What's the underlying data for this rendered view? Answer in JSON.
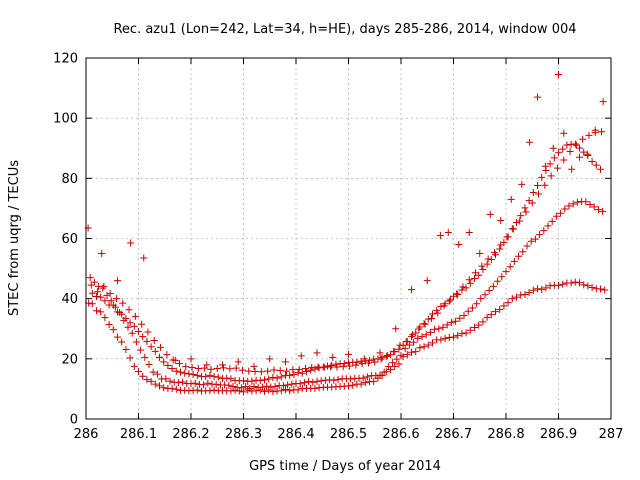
{
  "chart_data": {
    "type": "scatter",
    "title": "Rec. azu1 (Lon=242, Lat=34, h=HE), days 285-286, 2014, window 004",
    "xlabel": "GPS time / Days of year 2014",
    "ylabel": "STEC from uqrg / TECUs",
    "xlim": [
      286,
      287
    ],
    "ylim": [
      0,
      120
    ],
    "xticks": [
      286,
      286.1,
      286.2,
      286.3,
      286.4,
      286.5,
      286.6,
      286.7,
      286.8,
      286.9,
      287
    ],
    "xtick_labels": [
      "286",
      "286.1",
      "286.2",
      "286.3",
      "286.4",
      "286.5",
      "286.6",
      "286.7",
      "286.8",
      "286.9",
      "287"
    ],
    "yticks": [
      0,
      20,
      40,
      60,
      80,
      100,
      120
    ],
    "ytick_labels": [
      "0",
      "20",
      "40",
      "60",
      "80",
      "100",
      "120"
    ],
    "grid": true,
    "legend": "none",
    "marker": "plus",
    "color": "#cc0000",
    "series": [
      {
        "x": [
          286.005,
          286.012,
          286.02,
          286.028,
          286.036,
          286.044,
          286.052,
          286.06,
          286.068,
          286.076,
          286.084,
          286.092,
          286.1,
          286.108,
          286.116,
          286.124,
          286.132,
          286.14,
          286.148,
          286.156,
          286.164,
          286.172,
          286.18,
          286.188,
          286.196,
          286.204,
          286.212,
          286.22,
          286.228,
          286.236,
          286.244,
          286.252,
          286.26,
          286.268,
          286.276,
          286.284,
          286.292,
          286.3,
          286.308,
          286.316,
          286.324,
          286.332,
          286.34,
          286.348,
          286.356,
          286.364,
          286.372,
          286.38,
          286.388,
          286.396,
          286.404,
          286.412,
          286.42,
          286.428,
          286.436,
          286.444,
          286.452,
          286.46,
          286.468,
          286.476,
          286.484,
          286.492,
          286.5,
          286.508,
          286.516,
          286.524,
          286.532,
          286.54,
          286.548,
          286.556,
          286.564,
          286.572,
          286.58,
          286.588,
          286.596,
          286.604,
          286.612,
          286.62,
          286.628,
          286.636,
          286.644,
          286.652,
          286.66,
          286.668,
          286.676,
          286.684,
          286.692,
          286.7,
          286.708,
          286.716,
          286.724,
          286.732,
          286.74,
          286.748,
          286.756,
          286.764,
          286.772,
          286.78,
          286.788,
          286.796,
          286.804,
          286.812,
          286.82,
          286.828,
          286.836,
          286.844,
          286.852,
          286.86,
          286.868,
          286.876,
          286.884,
          286.892,
          286.9,
          286.908,
          286.916,
          286.924,
          286.932,
          286.94,
          286.948,
          286.956,
          286.964,
          286.972,
          286.98,
          286.988
        ],
        "y": [
          38.5,
          38.3,
          36,
          35.6,
          33.7,
          31.4,
          29.7,
          27.2,
          25.6,
          23.1,
          20.3,
          17.5,
          15.8,
          14.2,
          13.1,
          12.5,
          11.6,
          11,
          10.4,
          10.2,
          10.1,
          9.9,
          9.5,
          9.5,
          9.4,
          9.5,
          9.6,
          9.3,
          9.4,
          9.4,
          9.6,
          9.4,
          9.4,
          9.4,
          9.3,
          9.5,
          9.3,
          9,
          9.6,
          9.3,
          9.4,
          9.6,
          9.2,
          9.6,
          9.1,
          9.3,
          9.4,
          9.8,
          9.4,
          9.7,
          9.7,
          10.2,
          10.2,
          10.2,
          10.2,
          10.4,
          10.5,
          10.6,
          10.6,
          10.7,
          10.8,
          10.9,
          11,
          11.2,
          11.6,
          11.6,
          12.1,
          12.4,
          12.5,
          13.6,
          14.4,
          15.7,
          16.4,
          17.5,
          18.3,
          20.7,
          21.4,
          22.2,
          22.4,
          23.7,
          24,
          24.6,
          25.3,
          26.3,
          26.3,
          26.8,
          27.1,
          27.2,
          27.7,
          28.4,
          28.6,
          29.5,
          30.4,
          31.2,
          32.3,
          33.8,
          34.7,
          35.7,
          36.4,
          37.6,
          38.7,
          40,
          40.5,
          41.2,
          41.4,
          42,
          42.8,
          43.3,
          43.1,
          43.6,
          44.3,
          44.4,
          44.4,
          44.8,
          45.2,
          45.2,
          45.5,
          45.3,
          44.6,
          44.3,
          43.7,
          43.3,
          43.2,
          42.9
        ]
      },
      {
        "x": [
          286.008,
          286.016,
          286.024,
          286.032,
          286.04,
          286.048,
          286.056,
          286.064,
          286.072,
          286.08,
          286.088,
          286.096,
          286.104,
          286.112,
          286.12,
          286.128,
          286.136,
          286.144,
          286.152,
          286.16,
          286.168,
          286.176,
          286.184,
          286.192,
          286.2,
          286.208,
          286.216,
          286.224,
          286.232,
          286.24,
          286.248,
          286.256,
          286.264,
          286.272,
          286.28,
          286.288,
          286.296,
          286.304,
          286.312,
          286.32,
          286.328,
          286.336,
          286.344,
          286.352,
          286.36,
          286.368,
          286.376,
          286.384,
          286.392,
          286.4,
          286.408,
          286.416,
          286.424,
          286.432,
          286.44,
          286.448,
          286.456,
          286.464,
          286.472,
          286.48,
          286.488,
          286.496,
          286.504,
          286.512,
          286.52,
          286.528,
          286.536,
          286.544,
          286.552,
          286.56,
          286.568,
          286.576,
          286.584,
          286.592,
          286.6,
          286.608,
          286.616,
          286.624,
          286.632,
          286.64,
          286.648,
          286.656,
          286.664,
          286.672,
          286.68,
          286.688,
          286.696,
          286.704,
          286.712,
          286.72,
          286.728,
          286.736,
          286.744,
          286.752,
          286.76,
          286.768,
          286.776,
          286.784,
          286.792,
          286.8,
          286.808,
          286.816,
          286.824,
          286.832,
          286.84,
          286.848,
          286.856,
          286.864,
          286.872,
          286.88,
          286.888,
          286.896,
          286.904,
          286.912,
          286.92,
          286.928,
          286.936,
          286.944,
          286.952,
          286.96,
          286.968,
          286.976,
          286.984
        ],
        "y": [
          47,
          45.5,
          44.1,
          43.5,
          41.1,
          39.3,
          37.2,
          35.4,
          32.8,
          30.5,
          28.5,
          25.6,
          22.9,
          20.5,
          18.1,
          15.6,
          14.9,
          13.3,
          13.4,
          12.6,
          12.2,
          12.1,
          12.3,
          11.8,
          11.7,
          11.9,
          11.5,
          11.4,
          11.9,
          11.6,
          11.5,
          11.3,
          11.3,
          11.2,
          10.8,
          10.5,
          10.4,
          10.8,
          10.2,
          10.8,
          10.5,
          10.6,
          10.9,
          10.6,
          10.8,
          11.1,
          11.1,
          11.3,
          11.6,
          11.8,
          11.7,
          12.1,
          12.5,
          12.2,
          12.5,
          12.7,
          12.9,
          13,
          12.9,
          13.1,
          13.4,
          13.4,
          13.3,
          13.5,
          13.5,
          13.6,
          14,
          14.4,
          14.4,
          14.6,
          15.6,
          17.4,
          18.7,
          19.9,
          21.2,
          23.4,
          24.6,
          25.5,
          26.8,
          27.4,
          28,
          28.8,
          29.8,
          30,
          30.5,
          31.3,
          32.1,
          32.5,
          33.5,
          34.4,
          35.8,
          36.9,
          38.3,
          40,
          41.3,
          42.7,
          44.1,
          45.8,
          47.3,
          49,
          50.6,
          52.4,
          54.1,
          55.6,
          57.5,
          59.1,
          59.8,
          61.3,
          62.6,
          64.2,
          65.7,
          67.4,
          68.4,
          69.8,
          70.8,
          71.5,
          72.1,
          72.3,
          72.2,
          71.3,
          70.5,
          69.6,
          69
        ]
      },
      {
        "x": [
          286.012,
          286.02,
          286.028,
          286.036,
          286.044,
          286.052,
          286.06,
          286.068,
          286.076,
          286.084,
          286.092,
          286.1,
          286.108,
          286.116,
          286.124,
          286.132,
          286.14,
          286.148,
          286.156,
          286.164,
          286.172,
          286.18,
          286.188,
          286.196,
          286.204,
          286.212,
          286.22,
          286.228,
          286.236,
          286.244,
          286.252,
          286.26,
          286.268,
          286.276,
          286.284,
          286.292,
          286.3,
          286.308,
          286.316,
          286.324,
          286.332,
          286.34,
          286.348,
          286.356,
          286.364,
          286.372,
          286.38,
          286.388,
          286.396,
          286.404,
          286.412,
          286.42,
          286.428,
          286.436,
          286.444,
          286.452,
          286.46,
          286.468,
          286.476,
          286.484,
          286.492,
          286.5,
          286.508,
          286.516,
          286.524,
          286.532,
          286.54,
          286.548,
          286.556,
          286.564,
          286.572,
          286.58,
          286.588,
          286.596,
          286.604,
          286.612,
          286.62,
          286.628,
          286.636,
          286.644,
          286.652,
          286.66,
          286.668,
          286.676,
          286.684,
          286.692,
          286.7,
          286.708,
          286.716,
          286.724,
          286.732,
          286.74,
          286.748,
          286.756,
          286.764,
          286.772,
          286.78,
          286.788,
          286.796,
          286.804,
          286.812,
          286.82,
          286.828,
          286.836,
          286.844,
          286.852,
          286.86,
          286.868,
          286.876,
          286.884,
          286.892,
          286.9,
          286.908,
          286.916,
          286.924,
          286.932,
          286.94,
          286.948,
          286.956,
          286.964,
          286.972,
          286.98
        ],
        "y": [
          41.8,
          40.7,
          40.5,
          39.3,
          37.9,
          37.8,
          35.6,
          34.8,
          33.4,
          32,
          30.8,
          29.1,
          27.4,
          25.8,
          24,
          22.5,
          20.5,
          19,
          17.8,
          16.8,
          15.9,
          15.6,
          15.2,
          15,
          14.8,
          14.5,
          14.1,
          14.1,
          14.5,
          14.1,
          13.9,
          13.5,
          13.6,
          13.4,
          12.8,
          12.7,
          12.7,
          12.5,
          12.6,
          12.9,
          12.8,
          13,
          13.3,
          13.8,
          13.6,
          14,
          14.5,
          14.4,
          14.8,
          15.4,
          15.2,
          15.8,
          16.2,
          16.6,
          17,
          17.3,
          17.6,
          17.8,
          18.2,
          18.4,
          18.4,
          18.8,
          18.8,
          18.9,
          19.2,
          19.3,
          19.4,
          19.9,
          20,
          20.4,
          20.8,
          21.4,
          22.4,
          23.2,
          24.5,
          25.8,
          27.4,
          28.6,
          30.6,
          31.7,
          33.2,
          34.9,
          36.1,
          37.4,
          38.3,
          39.2,
          40.8,
          41.4,
          42.9,
          43.6,
          45.1,
          46.7,
          47.8,
          49.7,
          51.5,
          53,
          54.6,
          56.5,
          58.7,
          60.6,
          63.3,
          65.3,
          67.6,
          70.2,
          72.6,
          75.3,
          77.6,
          80.3,
          82.6,
          84.8,
          86.8,
          88.5,
          89.7,
          91.1,
          91.3,
          91.4,
          90.1,
          88.7,
          87.6,
          85.6,
          84.4,
          83
        ]
      },
      {
        "x": [
          286.01,
          286.022,
          286.034,
          286.046,
          286.058,
          286.07,
          286.082,
          286.094,
          286.106,
          286.118,
          286.13,
          286.142,
          286.154,
          286.166,
          286.178,
          286.19,
          286.202,
          286.214,
          286.226,
          286.238,
          286.25,
          286.262,
          286.274,
          286.286,
          286.298,
          286.31,
          286.322,
          286.334,
          286.346,
          286.358,
          286.37,
          286.382,
          286.394,
          286.406,
          286.418,
          286.43,
          286.442,
          286.454,
          286.466,
          286.478,
          286.49,
          286.502,
          286.514,
          286.526,
          286.538,
          286.55,
          286.562,
          286.574,
          286.586,
          286.598,
          286.61,
          286.622,
          286.634,
          286.646,
          286.658,
          286.67,
          286.682,
          286.694,
          286.706,
          286.718,
          286.73,
          286.742,
          286.754,
          286.766,
          286.778,
          286.79,
          286.802,
          286.814,
          286.826,
          286.838,
          286.85,
          286.862,
          286.874,
          286.886,
          286.898,
          286.91,
          286.922,
          286.934,
          286.946,
          286.958,
          286.97,
          286.982
        ],
        "y": [
          44.5,
          42.3,
          44.1,
          41.7,
          40,
          38.5,
          36.3,
          34.1,
          31.5,
          28.9,
          26.1,
          23.8,
          21.4,
          19.6,
          18.4,
          17.4,
          17.1,
          16.8,
          16.9,
          16.5,
          16.8,
          17,
          16.7,
          16.9,
          16.2,
          15.9,
          15.8,
          15.7,
          15.9,
          16.3,
          16.1,
          15.9,
          16.4,
          16.5,
          16.8,
          17.1,
          17.3,
          17.2,
          17.3,
          17.3,
          17.4,
          17.6,
          17.9,
          18.4,
          18.6,
          18.9,
          19.9,
          21.1,
          22.4,
          24.5,
          25.7,
          28,
          29.9,
          31.5,
          33.4,
          35.2,
          37.6,
          39.6,
          41.6,
          43.9,
          46.3,
          48.6,
          50.8,
          53.2,
          55.3,
          57.9,
          60.5,
          63.1,
          65.8,
          68.8,
          71.8,
          74.8,
          77.7,
          80.8,
          83.4,
          86.1,
          88.9,
          91,
          93,
          94.3,
          95.2,
          95.5
        ]
      },
      {
        "x": [
          286.004,
          286.03,
          286.06,
          286.085,
          286.11,
          286.14,
          286.17,
          286.2,
          286.23,
          286.26,
          286.29,
          286.32,
          286.35,
          286.38,
          286.41,
          286.44,
          286.47,
          286.5,
          286.53,
          286.56,
          286.59,
          286.62,
          286.65,
          286.675,
          286.69,
          286.71,
          286.73,
          286.75,
          286.77,
          286.79,
          286.81,
          286.83,
          286.845,
          286.86,
          286.875,
          286.89,
          286.9,
          286.91,
          286.925,
          286.94,
          286.955,
          286.97,
          286.985
        ],
        "y": [
          63.5,
          55,
          46,
          58.5,
          53.5,
          20.5,
          19.5,
          20,
          18,
          18,
          19,
          17.5,
          20,
          19,
          21,
          22,
          20.5,
          21.5,
          20,
          22,
          30,
          43,
          46,
          61,
          62,
          58,
          62,
          55,
          68,
          66,
          73,
          78,
          92,
          107,
          84,
          90,
          114.5,
          95,
          83,
          87,
          88,
          96,
          105.5
        ]
      }
    ]
  }
}
